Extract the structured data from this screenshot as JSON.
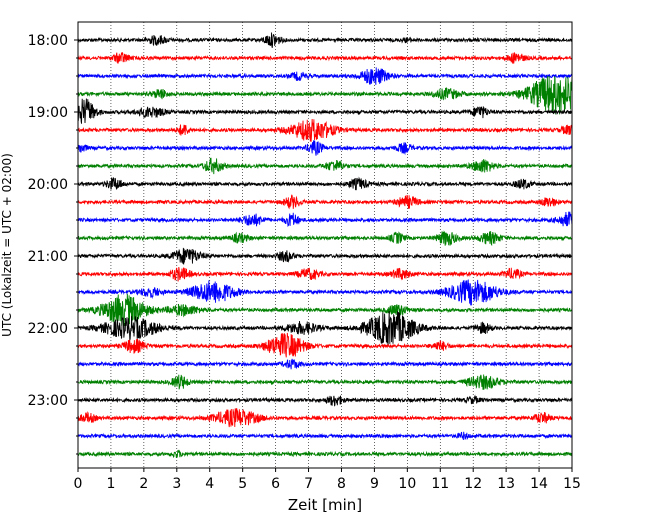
{
  "chart_data": {
    "type": "line",
    "title": "",
    "xlabel": "Zeit  [min]",
    "ylabel": "UTC (Lokalzeit = UTC + 02:00)",
    "xlim": [
      0,
      15
    ],
    "x_ticks": [
      0,
      1,
      2,
      3,
      4,
      5,
      6,
      7,
      8,
      9,
      10,
      11,
      12,
      13,
      14,
      15
    ],
    "y_tick_labels": [
      "18:00",
      "19:00",
      "20:00",
      "21:00",
      "22:00",
      "23:00"
    ],
    "vertical_grid": true,
    "trace_interval_min": 15,
    "colors": [
      "#000000",
      "#ff0000",
      "#0000ff",
      "#008000"
    ],
    "traces": [
      {
        "start": "18:00",
        "color": "#000000",
        "events": [
          [
            2.4,
            0.35,
            0.3
          ],
          [
            5.9,
            0.3,
            0.45
          ],
          [
            10,
            0.25,
            0.1
          ]
        ]
      },
      {
        "start": "18:15",
        "color": "#ff0000",
        "events": [
          [
            1.3,
            0.3,
            0.35
          ],
          [
            13.3,
            0.3,
            0.35
          ]
        ]
      },
      {
        "start": "18:30",
        "color": "#0000ff",
        "events": [
          [
            9,
            0.5,
            0.6
          ],
          [
            6.7,
            0.3,
            0.25
          ]
        ]
      },
      {
        "start": "18:45",
        "color": "#008000",
        "events": [
          [
            2.5,
            0.3,
            0.3
          ],
          [
            11.2,
            0.5,
            0.35
          ],
          [
            14.5,
            1.0,
            1.4
          ]
        ]
      },
      {
        "start": "19:00",
        "color": "#000000",
        "events": [
          [
            0.2,
            0.4,
            0.9
          ],
          [
            2.2,
            0.5,
            0.35
          ],
          [
            12.2,
            0.3,
            0.4
          ]
        ]
      },
      {
        "start": "19:15",
        "color": "#ff0000",
        "events": [
          [
            3.2,
            0.2,
            0.4
          ],
          [
            7.1,
            0.8,
            0.75
          ],
          [
            14.9,
            0.3,
            0.3
          ]
        ]
      },
      {
        "start": "19:30",
        "color": "#0000ff",
        "events": [
          [
            0.1,
            0.2,
            0.3
          ],
          [
            7.2,
            0.3,
            0.45
          ],
          [
            9.9,
            0.3,
            0.3
          ]
        ]
      },
      {
        "start": "19:45",
        "color": "#008000",
        "events": [
          [
            4.1,
            0.35,
            0.5
          ],
          [
            7.8,
            0.35,
            0.35
          ],
          [
            12.3,
            0.4,
            0.45
          ]
        ]
      },
      {
        "start": "20:00",
        "color": "#000000",
        "events": [
          [
            1.1,
            0.3,
            0.4
          ],
          [
            8.5,
            0.35,
            0.35
          ],
          [
            13.5,
            0.3,
            0.3
          ]
        ]
      },
      {
        "start": "20:15",
        "color": "#ff0000",
        "events": [
          [
            6.5,
            0.3,
            0.4
          ],
          [
            10,
            0.4,
            0.4
          ],
          [
            14.3,
            0.3,
            0.3
          ]
        ]
      },
      {
        "start": "20:30",
        "color": "#0000ff",
        "events": [
          [
            5.3,
            0.4,
            0.4
          ],
          [
            6.5,
            0.25,
            0.45
          ],
          [
            14.9,
            0.4,
            0.5
          ]
        ]
      },
      {
        "start": "20:45",
        "color": "#008000",
        "events": [
          [
            4.9,
            0.3,
            0.3
          ],
          [
            9.7,
            0.25,
            0.35
          ],
          [
            11.2,
            0.35,
            0.5
          ],
          [
            12.5,
            0.4,
            0.4
          ]
        ]
      },
      {
        "start": "21:00",
        "color": "#000000",
        "events": [
          [
            3.3,
            0.5,
            0.55
          ],
          [
            6.3,
            0.3,
            0.35
          ]
        ]
      },
      {
        "start": "21:15",
        "color": "#ff0000",
        "events": [
          [
            3.1,
            0.35,
            0.45
          ],
          [
            7,
            0.4,
            0.35
          ],
          [
            9.8,
            0.35,
            0.35
          ],
          [
            13.2,
            0.3,
            0.35
          ]
        ]
      },
      {
        "start": "21:30",
        "color": "#0000ff",
        "events": [
          [
            4.1,
            0.8,
            0.75
          ],
          [
            12,
            0.9,
            0.85
          ],
          [
            2.2,
            0.4,
            0.3
          ]
        ]
      },
      {
        "start": "21:45",
        "color": "#008000",
        "events": [
          [
            1.4,
            0.8,
            1.1
          ],
          [
            3.2,
            0.6,
            0.35
          ],
          [
            9.7,
            0.4,
            0.35
          ]
        ]
      },
      {
        "start": "22:00",
        "color": "#000000",
        "events": [
          [
            1.6,
            1.0,
            0.75
          ],
          [
            9.5,
            0.9,
            1.2
          ],
          [
            6.8,
            0.6,
            0.4
          ],
          [
            12.3,
            0.3,
            0.35
          ]
        ]
      },
      {
        "start": "22:15",
        "color": "#ff0000",
        "events": [
          [
            1.7,
            0.4,
            0.45
          ],
          [
            6.3,
            0.7,
            0.85
          ],
          [
            11,
            0.3,
            0.3
          ]
        ]
      },
      {
        "start": "22:30",
        "color": "#0000ff",
        "events": [
          [
            6.5,
            0.3,
            0.3
          ]
        ]
      },
      {
        "start": "22:45",
        "color": "#008000",
        "events": [
          [
            3.1,
            0.3,
            0.45
          ],
          [
            12.3,
            0.6,
            0.45
          ]
        ]
      },
      {
        "start": "23:00",
        "color": "#000000",
        "events": [
          [
            7.8,
            0.3,
            0.35
          ],
          [
            12,
            0.25,
            0.2
          ]
        ]
      },
      {
        "start": "23:15",
        "color": "#ff0000",
        "events": [
          [
            0.3,
            0.3,
            0.3
          ],
          [
            4.8,
            0.8,
            0.6
          ],
          [
            14.1,
            0.3,
            0.35
          ]
        ]
      },
      {
        "start": "23:30",
        "color": "#0000ff",
        "events": [
          [
            11.7,
            0.2,
            0.2
          ]
        ]
      },
      {
        "start": "23:45",
        "color": "#008000",
        "events": [
          [
            3,
            0.2,
            0.2
          ]
        ]
      }
    ]
  }
}
